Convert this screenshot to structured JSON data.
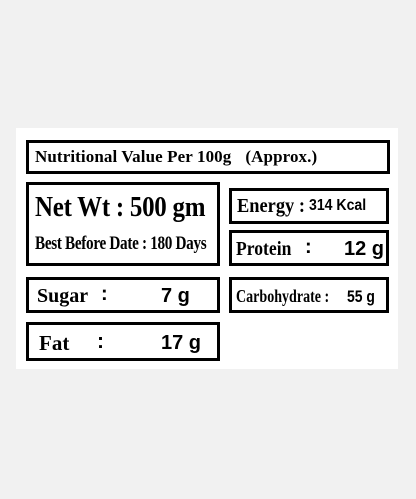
{
  "label": {
    "title": "Nutritional Value Per 100g",
    "title_suffix": "(Approx.)",
    "net_wt": "Net Wt : 500 gm",
    "best_before": "Best Before Date : 180 Days",
    "energy": {
      "label": "Energy :",
      "value": "314 Kcal"
    },
    "protein": {
      "label": "Protein",
      "colon": ":",
      "value": "12 g"
    },
    "sugar": {
      "label": "Sugar",
      "colon": ":",
      "value": "7 g"
    },
    "carbohydrate": {
      "label": "Carbohydrate :",
      "value": "55 g"
    },
    "fat": {
      "label": "Fat",
      "colon": ":",
      "value": "17 g"
    }
  }
}
